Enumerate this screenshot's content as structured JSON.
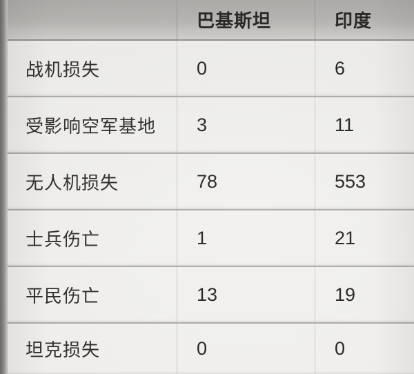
{
  "table": {
    "header": {
      "metric": "",
      "pakistan": "巴基斯坦",
      "india": "印度"
    },
    "rows": [
      {
        "label": "战机损失",
        "pakistan": "0",
        "india": "6"
      },
      {
        "label": "受影响空军基地",
        "pakistan": "3",
        "india": "11"
      },
      {
        "label": "无人机损失",
        "pakistan": "78",
        "india": "553"
      },
      {
        "label": "士兵伤亡",
        "pakistan": "1",
        "india": "21"
      },
      {
        "label": "平民伤亡",
        "pakistan": "13",
        "india": "19"
      },
      {
        "label": "坦克损失",
        "pakistan": "0",
        "india": "0"
      }
    ]
  },
  "chart_data": {
    "type": "table",
    "title": "",
    "columns": [
      "",
      "巴基斯坦",
      "印度"
    ],
    "rows": [
      [
        "战机损失",
        0,
        6
      ],
      [
        "受影响空军基地",
        3,
        11
      ],
      [
        "无人机损失",
        78,
        553
      ],
      [
        "士兵伤亡",
        1,
        21
      ],
      [
        "平民伤亡",
        13,
        19
      ],
      [
        "坦克损失",
        0,
        0
      ]
    ],
    "layout_hints": {
      "header_background": "#b4b2af",
      "body_background": "#f1f0ee",
      "grid": "on",
      "text_color": "#2c2b29",
      "border_color": "#aeacaa"
    }
  }
}
